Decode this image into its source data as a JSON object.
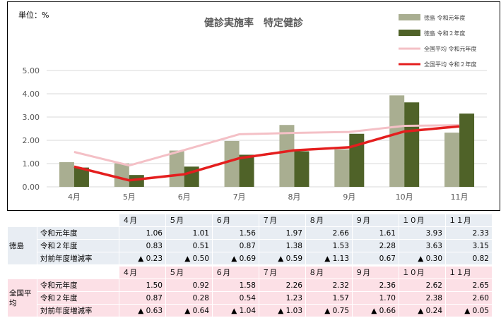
{
  "chart_data": {
    "type": "bar+line",
    "title": "健診実施率　特定健診",
    "unit_label": "単位：%",
    "categories": [
      "4月",
      "5月",
      "6月",
      "7月",
      "8月",
      "9月",
      "10月",
      "11月"
    ],
    "ylim": [
      0,
      5
    ],
    "yticks": [
      "0.00",
      "1.00",
      "2.00",
      "3.00",
      "4.00",
      "5.00"
    ],
    "ytick_values": [
      0,
      1,
      2,
      3,
      4,
      5
    ],
    "grid": true,
    "legend_position": "top-right",
    "bars": [
      {
        "name": "徳島 令和元年度",
        "color": "#a9ae91",
        "values": [
          1.06,
          1.01,
          1.56,
          1.97,
          2.66,
          1.61,
          3.93,
          2.33
        ]
      },
      {
        "name": "徳島 令和２年度",
        "color": "#4f6228",
        "values": [
          0.83,
          0.51,
          0.87,
          1.38,
          1.53,
          2.28,
          3.63,
          3.15
        ]
      }
    ],
    "lines": [
      {
        "name": "全国平均 令和元年度",
        "color": "#f4c0c6",
        "values": [
          1.5,
          0.92,
          1.58,
          2.26,
          2.32,
          2.36,
          2.62,
          2.65
        ]
      },
      {
        "name": "全国平均 令和２年度",
        "color": "#e41e1e",
        "values": [
          0.87,
          0.28,
          0.54,
          1.23,
          1.57,
          1.7,
          2.38,
          2.6
        ]
      }
    ]
  },
  "tables": {
    "tokushima": {
      "group": "徳島",
      "months": [
        "４月",
        "５月",
        "６月",
        "７月",
        "８月",
        "９月",
        "１０月",
        "１１月"
      ],
      "rows": [
        {
          "label": "令和元年度",
          "values": [
            "1.06",
            "1.01",
            "1.56",
            "1.97",
            "2.66",
            "1.61",
            "3.93",
            "2.33"
          ]
        },
        {
          "label": "令和２年度",
          "values": [
            "0.83",
            "0.51",
            "0.87",
            "1.38",
            "1.53",
            "2.28",
            "3.63",
            "3.15"
          ]
        },
        {
          "label": "対前年度増減率",
          "values": [
            "▲ 0.23",
            "▲ 0.50",
            "▲ 0.69",
            "▲ 0.59",
            "▲ 1.13",
            "0.67",
            "▲ 0.30",
            "0.82"
          ]
        }
      ]
    },
    "national": {
      "group": "全国平均",
      "months": [
        "４月",
        "５月",
        "６月",
        "７月",
        "８月",
        "９月",
        "１０月",
        "１１月"
      ],
      "rows": [
        {
          "label": "令和元年度",
          "values": [
            "1.50",
            "0.92",
            "1.58",
            "2.26",
            "2.32",
            "2.36",
            "2.62",
            "2.65"
          ]
        },
        {
          "label": "令和２年度",
          "values": [
            "0.87",
            "0.28",
            "0.54",
            "1.23",
            "1.57",
            "1.70",
            "2.38",
            "2.60"
          ]
        },
        {
          "label": "対前年度増減率",
          "values": [
            "▲ 0.63",
            "▲ 0.64",
            "▲ 1.04",
            "▲ 1.03",
            "▲ 0.75",
            "▲ 0.66",
            "▲ 0.24",
            "▲ 0.05"
          ]
        }
      ]
    }
  }
}
